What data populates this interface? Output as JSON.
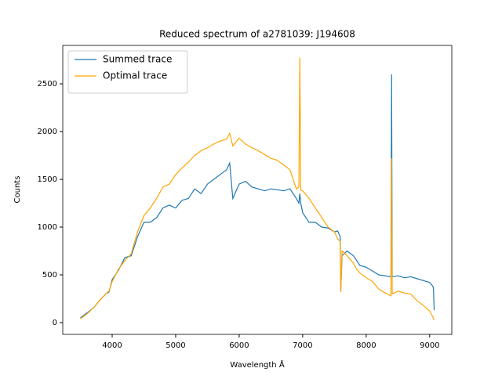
{
  "chart_data": {
    "type": "line",
    "title": "Reduced spectrum of a2781039: J194608",
    "x_label": "Wavelength Å",
    "y_label": "Counts",
    "x": [
      3500,
      3600,
      3700,
      3800,
      3900,
      3950,
      4000,
      4100,
      4200,
      4300,
      4400,
      4500,
      4600,
      4700,
      4800,
      4900,
      5000,
      5100,
      5200,
      5300,
      5400,
      5500,
      5600,
      5700,
      5800,
      5850,
      5900,
      6000,
      6100,
      6200,
      6300,
      6400,
      6500,
      6600,
      6700,
      6800,
      6850,
      6900,
      6940,
      6955,
      6970,
      7000,
      7100,
      7200,
      7300,
      7400,
      7500,
      7550,
      7590,
      7600,
      7620,
      7700,
      7800,
      7850,
      7900,
      8000,
      8100,
      8200,
      8300,
      8390,
      8400,
      8410,
      8500,
      8600,
      8700,
      8800,
      8900,
      9000,
      9050,
      9060,
      9070
    ],
    "series": [
      {
        "name": "Summed trace",
        "color": "#1f77b4",
        "values": [
          50,
          100,
          150,
          230,
          300,
          320,
          450,
          550,
          680,
          700,
          900,
          1050,
          1050,
          1100,
          1200,
          1230,
          1200,
          1280,
          1300,
          1400,
          1350,
          1450,
          1500,
          1550,
          1600,
          1670,
          1300,
          1450,
          1480,
          1420,
          1400,
          1380,
          1400,
          1390,
          1380,
          1400,
          1350,
          1300,
          1250,
          1350,
          1250,
          1150,
          1050,
          1050,
          1000,
          990,
          950,
          960,
          900,
          330,
          700,
          750,
          700,
          650,
          600,
          580,
          540,
          500,
          490,
          480,
          2600,
          480,
          490,
          470,
          480,
          460,
          440,
          420,
          380,
          360,
          130
        ]
      },
      {
        "name": "Optimal trace",
        "color": "#ffa500",
        "values": [
          40,
          90,
          150,
          230,
          300,
          330,
          430,
          560,
          650,
          720,
          950,
          1120,
          1200,
          1300,
          1420,
          1450,
          1550,
          1620,
          1680,
          1750,
          1800,
          1830,
          1870,
          1900,
          1920,
          1980,
          1850,
          1930,
          1870,
          1830,
          1800,
          1760,
          1720,
          1700,
          1650,
          1600,
          1500,
          1400,
          1420,
          2775,
          1390,
          1380,
          1300,
          1200,
          1100,
          1000,
          950,
          880,
          850,
          320,
          750,
          700,
          620,
          560,
          520,
          470,
          430,
          350,
          310,
          280,
          1720,
          300,
          330,
          310,
          300,
          230,
          180,
          120,
          60,
          40,
          30
        ]
      }
    ],
    "xlim": [
      3222,
      9348
    ],
    "ylim": [
      -123,
      2902
    ],
    "xticks": [
      4000,
      5000,
      6000,
      7000,
      8000,
      9000
    ],
    "yticks": [
      0,
      500,
      1000,
      1500,
      2000,
      2500
    ],
    "legend": "upper left"
  }
}
